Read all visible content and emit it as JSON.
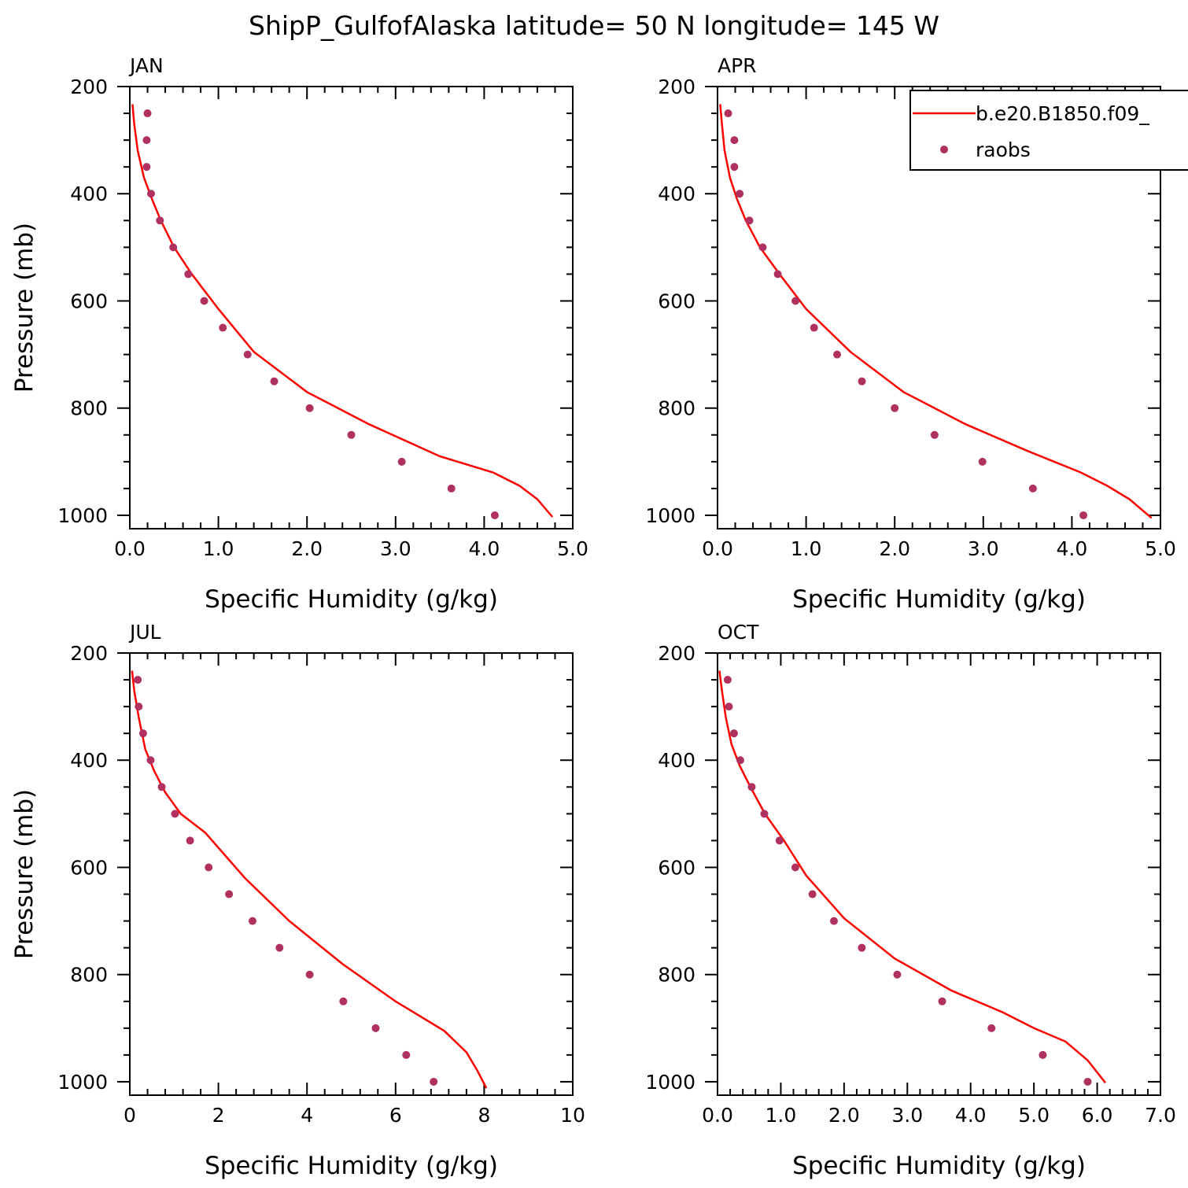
{
  "title": "ShipP_GulfofAlaska  latitude= 50 N longitude= 145 W",
  "legend": {
    "model_label": "b.e20.B1850.f09_",
    "obs_label": "raobs",
    "model_color": "#ff0000",
    "obs_color": "#b03060"
  },
  "chart_data": [
    {
      "type": "line",
      "panel_title": "JAN",
      "xlabel": "Specific Humidity (g/kg)",
      "ylabel": "Pressure (mb)",
      "xlim": [
        0,
        5
      ],
      "ylim": [
        1025,
        200
      ],
      "xticks": [
        0,
        1,
        2,
        3,
        4,
        5
      ],
      "xtick_labels": [
        "0.0",
        "1.0",
        "2.0",
        "3.0",
        "4.0",
        "5.0"
      ],
      "yticks": [
        200,
        400,
        600,
        800,
        1000
      ],
      "ytick_labels": [
        "200",
        "400",
        "600",
        "800",
        "1000"
      ],
      "model": {
        "x": [
          0.03,
          0.05,
          0.09,
          0.16,
          0.25,
          0.35,
          0.5,
          0.7,
          1.0,
          1.4,
          2.0,
          2.7,
          3.5,
          4.1,
          4.4,
          4.6,
          4.77
        ],
        "y": [
          233,
          270,
          320,
          370,
          410,
          450,
          500,
          550,
          615,
          695,
          770,
          830,
          890,
          920,
          945,
          970,
          1003
        ]
      },
      "obs": {
        "x": [
          0.2,
          0.19,
          0.19,
          0.24,
          0.34,
          0.49,
          0.66,
          0.84,
          1.05,
          1.33,
          1.63,
          2.03,
          2.5,
          3.07,
          3.63,
          4.12
        ],
        "y": [
          250,
          300,
          350,
          400,
          450,
          500,
          550,
          600,
          650,
          700,
          750,
          800,
          850,
          900,
          950,
          1000
        ]
      }
    },
    {
      "type": "line",
      "panel_title": "APR",
      "xlabel": "Specific Humidity (g/kg)",
      "ylabel": "",
      "xlim": [
        0,
        5
      ],
      "ylim": [
        1025,
        200
      ],
      "xticks": [
        0,
        1,
        2,
        3,
        4,
        5
      ],
      "xtick_labels": [
        "0.0",
        "1.0",
        "2.0",
        "3.0",
        "4.0",
        "5.0"
      ],
      "yticks": [
        200,
        400,
        600,
        800,
        1000
      ],
      "ytick_labels": [
        "200",
        "400",
        "600",
        "800",
        "1000"
      ],
      "show_legend": true,
      "model": {
        "x": [
          0.03,
          0.05,
          0.08,
          0.14,
          0.22,
          0.32,
          0.48,
          0.7,
          1.0,
          1.5,
          2.1,
          2.8,
          3.5,
          4.1,
          4.4,
          4.65,
          4.9
        ],
        "y": [
          233,
          270,
          320,
          370,
          410,
          450,
          500,
          550,
          615,
          695,
          770,
          830,
          880,
          920,
          945,
          970,
          1005
        ]
      },
      "obs": {
        "x": [
          0.12,
          0.19,
          0.19,
          0.25,
          0.36,
          0.51,
          0.68,
          0.88,
          1.09,
          1.35,
          1.63,
          2.0,
          2.45,
          2.99,
          3.56,
          4.13
        ],
        "y": [
          250,
          300,
          350,
          400,
          450,
          500,
          550,
          600,
          650,
          700,
          750,
          800,
          850,
          900,
          950,
          1000
        ]
      }
    },
    {
      "type": "line",
      "panel_title": "JUL",
      "xlabel": "Specific Humidity (g/kg)",
      "ylabel": "Pressure (mb)",
      "xlim": [
        0,
        10
      ],
      "ylim": [
        1025,
        200
      ],
      "xticks": [
        0,
        2,
        4,
        6,
        8,
        10
      ],
      "xtick_labels": [
        "0",
        "2",
        "4",
        "6",
        "8",
        "10"
      ],
      "yticks": [
        200,
        400,
        600,
        800,
        1000
      ],
      "ytick_labels": [
        "200",
        "400",
        "600",
        "800",
        "1000"
      ],
      "model": {
        "x": [
          0.05,
          0.1,
          0.2,
          0.35,
          0.55,
          0.8,
          1.15,
          1.7,
          2.6,
          3.6,
          4.8,
          6.0,
          7.1,
          7.6,
          7.85,
          8.05
        ],
        "y": [
          233,
          270,
          320,
          380,
          420,
          460,
          500,
          535,
          620,
          700,
          780,
          850,
          905,
          945,
          980,
          1012
        ]
      },
      "obs": {
        "x": [
          0.18,
          0.2,
          0.3,
          0.47,
          0.72,
          1.02,
          1.36,
          1.78,
          2.24,
          2.77,
          3.38,
          4.06,
          4.82,
          5.55,
          6.24,
          6.86
        ],
        "y": [
          250,
          300,
          350,
          400,
          450,
          500,
          550,
          600,
          650,
          700,
          750,
          800,
          850,
          900,
          950,
          1000
        ]
      }
    },
    {
      "type": "line",
      "panel_title": "OCT",
      "xlabel": "Specific Humidity (g/kg)",
      "ylabel": "",
      "xlim": [
        0,
        7
      ],
      "ylim": [
        1025,
        200
      ],
      "xticks": [
        0,
        1,
        2,
        3,
        4,
        5,
        6,
        7
      ],
      "xtick_labels": [
        "0.0",
        "1.0",
        "2.0",
        "3.0",
        "4.0",
        "5.0",
        "6.0",
        "7.0"
      ],
      "yticks": [
        200,
        400,
        600,
        800,
        1000
      ],
      "ytick_labels": [
        "200",
        "400",
        "600",
        "800",
        "1000"
      ],
      "model": {
        "x": [
          0.03,
          0.07,
          0.13,
          0.22,
          0.35,
          0.52,
          0.75,
          1.05,
          1.4,
          2.0,
          2.8,
          3.7,
          4.5,
          5.0,
          5.5,
          5.85,
          6.13
        ],
        "y": [
          233,
          270,
          320,
          370,
          410,
          450,
          500,
          550,
          615,
          695,
          770,
          830,
          870,
          900,
          925,
          960,
          1002
        ]
      },
      "obs": {
        "x": [
          0.16,
          0.18,
          0.26,
          0.36,
          0.54,
          0.74,
          0.98,
          1.23,
          1.5,
          1.84,
          2.28,
          2.84,
          3.55,
          4.33,
          5.14,
          5.85
        ],
        "y": [
          250,
          300,
          350,
          400,
          450,
          500,
          550,
          600,
          650,
          700,
          750,
          800,
          850,
          900,
          950,
          1000
        ]
      }
    }
  ]
}
